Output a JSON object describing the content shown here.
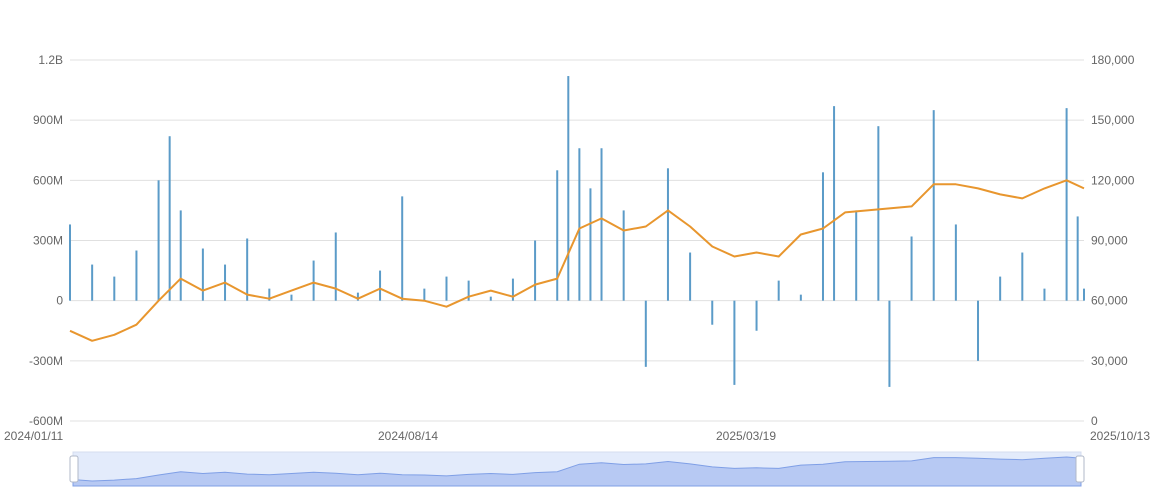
{
  "chart_data": {
    "type": "bar+line",
    "title": "",
    "left_axis": {
      "ylim": [
        -600000000,
        1200000000
      ],
      "tick_values": [
        -600000000,
        -300000000,
        0,
        300000000,
        600000000,
        900000000,
        1200000000
      ],
      "tick_labels": [
        "-600M",
        "-300M",
        "0",
        "300M",
        "600M",
        "900M",
        "1.2B"
      ]
    },
    "right_axis": {
      "ylim": [
        0,
        180000
      ],
      "tick_values": [
        0,
        30000,
        60000,
        90000,
        120000,
        150000,
        180000
      ],
      "tick_labels": [
        "0",
        "30,000",
        "60,000",
        "90,000",
        "120,000",
        "150,000",
        "180,000"
      ]
    },
    "x_axis": {
      "start": "2024-01-11",
      "end": "2025-10-13",
      "tick_labels": [
        "2024/01/11",
        "2024/08/14",
        "2025/03/19",
        "2025/10/13"
      ]
    },
    "grid": true,
    "colors": {
      "bars": "#5b9bc8",
      "line": "#e8962e",
      "grid": "#e0e0e0",
      "axis_text": "#666666",
      "zoom_fill": "#b7c9f3",
      "zoom_line": "#7f9fe6",
      "zoom_bg": "#e3ebfb"
    },
    "series": [
      {
        "axis": "left",
        "type": "bar",
        "points": [
          [
            "2024-01-11",
            380000000
          ],
          [
            "2024-01-25",
            180000000
          ],
          [
            "2024-02-08",
            120000000
          ],
          [
            "2024-02-22",
            250000000
          ],
          [
            "2024-03-07",
            600000000
          ],
          [
            "2024-03-14",
            820000000
          ],
          [
            "2024-03-21",
            450000000
          ],
          [
            "2024-04-04",
            260000000
          ],
          [
            "2024-04-18",
            180000000
          ],
          [
            "2024-05-02",
            310000000
          ],
          [
            "2024-05-16",
            60000000
          ],
          [
            "2024-05-30",
            30000000
          ],
          [
            "2024-06-13",
            200000000
          ],
          [
            "2024-06-27",
            340000000
          ],
          [
            "2024-07-11",
            40000000
          ],
          [
            "2024-07-25",
            150000000
          ],
          [
            "2024-08-08",
            520000000
          ],
          [
            "2024-08-22",
            60000000
          ],
          [
            "2024-09-05",
            120000000
          ],
          [
            "2024-09-19",
            100000000
          ],
          [
            "2024-10-03",
            20000000
          ],
          [
            "2024-10-17",
            110000000
          ],
          [
            "2024-10-31",
            300000000
          ],
          [
            "2024-11-14",
            650000000
          ],
          [
            "2024-11-21",
            1120000000
          ],
          [
            "2024-11-28",
            760000000
          ],
          [
            "2024-12-05",
            560000000
          ],
          [
            "2024-12-12",
            760000000
          ],
          [
            "2024-12-26",
            450000000
          ],
          [
            "2025-01-09",
            -330000000
          ],
          [
            "2025-01-23",
            660000000
          ],
          [
            "2025-02-06",
            240000000
          ],
          [
            "2025-02-20",
            -120000000
          ],
          [
            "2025-03-06",
            -420000000
          ],
          [
            "2025-03-20",
            -150000000
          ],
          [
            "2025-04-03",
            100000000
          ],
          [
            "2025-04-17",
            30000000
          ],
          [
            "2025-05-01",
            640000000
          ],
          [
            "2025-05-08",
            970000000
          ],
          [
            "2025-05-22",
            450000000
          ],
          [
            "2025-06-05",
            870000000
          ],
          [
            "2025-06-12",
            -430000000
          ],
          [
            "2025-06-26",
            320000000
          ],
          [
            "2025-07-10",
            950000000
          ],
          [
            "2025-07-24",
            380000000
          ],
          [
            "2025-08-07",
            -300000000
          ],
          [
            "2025-08-21",
            120000000
          ],
          [
            "2025-09-04",
            240000000
          ],
          [
            "2025-09-18",
            60000000
          ],
          [
            "2025-10-02",
            960000000
          ],
          [
            "2025-10-09",
            420000000
          ],
          [
            "2025-10-13",
            60000000
          ]
        ]
      },
      {
        "axis": "right",
        "type": "line",
        "points": [
          [
            "2024-01-11",
            45000
          ],
          [
            "2024-01-25",
            40000
          ],
          [
            "2024-02-08",
            43000
          ],
          [
            "2024-02-22",
            48000
          ],
          [
            "2024-03-07",
            60000
          ],
          [
            "2024-03-21",
            71000
          ],
          [
            "2024-04-04",
            65000
          ],
          [
            "2024-04-18",
            69000
          ],
          [
            "2024-05-02",
            63000
          ],
          [
            "2024-05-16",
            61000
          ],
          [
            "2024-05-30",
            65000
          ],
          [
            "2024-06-13",
            69000
          ],
          [
            "2024-06-27",
            66000
          ],
          [
            "2024-07-11",
            61000
          ],
          [
            "2024-07-25",
            66000
          ],
          [
            "2024-08-08",
            61000
          ],
          [
            "2024-08-22",
            60000
          ],
          [
            "2024-09-05",
            57000
          ],
          [
            "2024-09-19",
            62000
          ],
          [
            "2024-10-03",
            65000
          ],
          [
            "2024-10-17",
            62000
          ],
          [
            "2024-10-31",
            68000
          ],
          [
            "2024-11-14",
            71000
          ],
          [
            "2024-11-28",
            96000
          ],
          [
            "2024-12-12",
            101000
          ],
          [
            "2024-12-26",
            95000
          ],
          [
            "2025-01-09",
            97000
          ],
          [
            "2025-01-23",
            105000
          ],
          [
            "2025-02-06",
            97000
          ],
          [
            "2025-02-20",
            87000
          ],
          [
            "2025-03-06",
            82000
          ],
          [
            "2025-03-20",
            84000
          ],
          [
            "2025-04-03",
            82000
          ],
          [
            "2025-04-17",
            93000
          ],
          [
            "2025-05-01",
            96000
          ],
          [
            "2025-05-15",
            104000
          ],
          [
            "2025-05-29",
            105000
          ],
          [
            "2025-06-12",
            106000
          ],
          [
            "2025-06-26",
            107000
          ],
          [
            "2025-07-10",
            118000
          ],
          [
            "2025-07-24",
            118000
          ],
          [
            "2025-08-07",
            116000
          ],
          [
            "2025-08-21",
            113000
          ],
          [
            "2025-09-04",
            111000
          ],
          [
            "2025-09-18",
            116000
          ],
          [
            "2025-10-02",
            120000
          ],
          [
            "2025-10-13",
            116000
          ]
        ]
      }
    ]
  }
}
